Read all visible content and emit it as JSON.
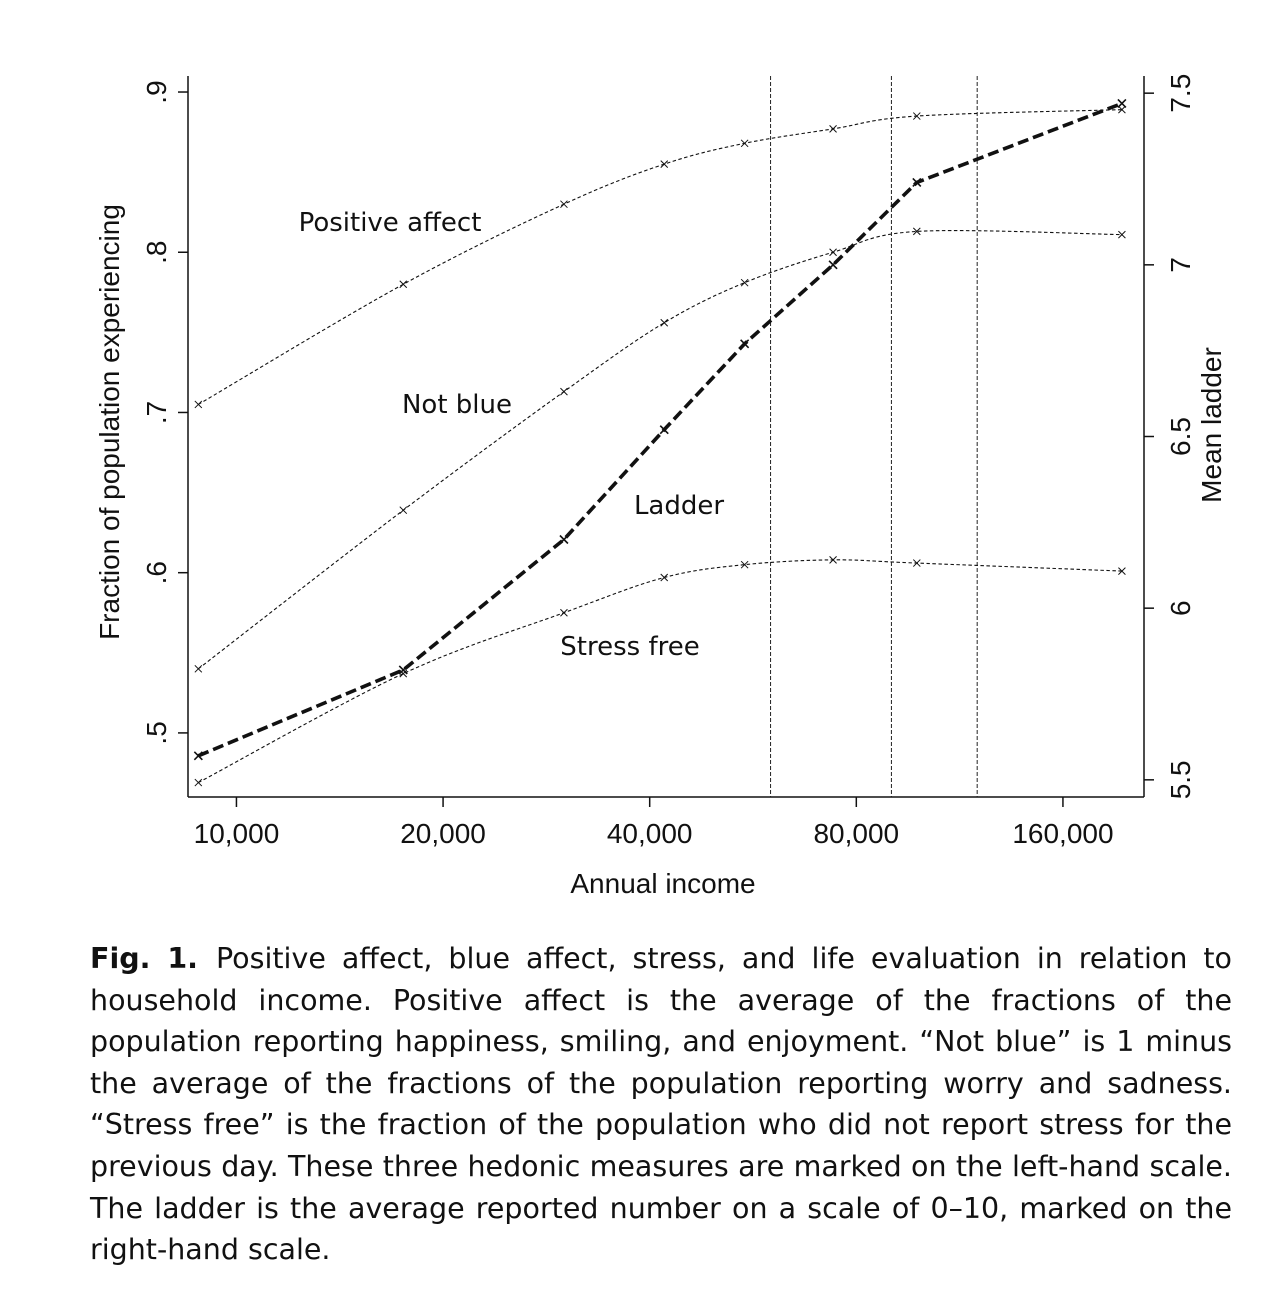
{
  "chart_data": {
    "type": "line",
    "xlabel": "Annual income",
    "ylabel_left": "Fraction of population experiencing",
    "ylabel_right": "Mean ladder",
    "x_scale": "log",
    "x_ticks": [
      10000,
      20000,
      40000,
      80000,
      160000
    ],
    "x_tick_labels": [
      "10,000",
      "20,000",
      "40,000",
      "80,000",
      "160,000"
    ],
    "xlim": [
      8500,
      210000
    ],
    "ylim_left": [
      0.46,
      0.91
    ],
    "y_ticks_left": [
      0.5,
      0.6,
      0.7,
      0.8,
      0.9
    ],
    "y_tick_labels_left": [
      ".5",
      ".6",
      ".7",
      ".8",
      ".9"
    ],
    "ylim_right": [
      5.45,
      7.55
    ],
    "y_ticks_right": [
      5.5,
      6,
      6.5,
      7,
      7.5
    ],
    "y_tick_labels_right": [
      "5.5",
      "6",
      "6.5",
      "7",
      "7.5"
    ],
    "vertical_lines_x": [
      60000,
      90000,
      120000
    ],
    "x": [
      8800,
      17500,
      30000,
      42000,
      55000,
      74000,
      98000,
      195000
    ],
    "series": [
      {
        "name": "Positive affect",
        "axis": "left",
        "values": [
          0.705,
          0.78,
          0.83,
          0.855,
          0.868,
          0.877,
          0.885,
          0.889
        ]
      },
      {
        "name": "Not blue",
        "axis": "left",
        "values": [
          0.54,
          0.639,
          0.713,
          0.756,
          0.781,
          0.8,
          0.813,
          0.811
        ]
      },
      {
        "name": "Stress free",
        "axis": "left",
        "values": [
          0.469,
          0.537,
          0.575,
          0.597,
          0.605,
          0.608,
          0.606,
          0.601
        ]
      },
      {
        "name": "Ladder",
        "axis": "right",
        "values": [
          5.57,
          5.82,
          6.2,
          6.52,
          6.77,
          7.0,
          7.24,
          7.47
        ]
      }
    ]
  },
  "caption": {
    "label": "Fig. 1.",
    "text": "Positive affect, blue affect, stress, and life evaluation in relation to household income. Positive affect is the average of the fractions of the population reporting happiness, smiling, and enjoyment. “Not blue” is 1 minus the average of the fractions of the population reporting worry and sadness. “Stress free” is the fraction of the population who did not report stress for the previous day. These three hedonic measures are marked on the left-hand scale. The ladder is the average reported number on a scale of 0–10, marked on the right-hand scale."
  }
}
